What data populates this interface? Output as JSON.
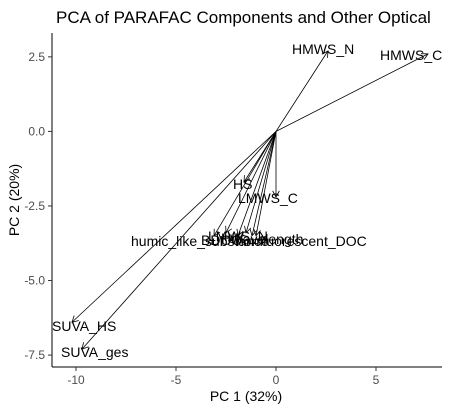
{
  "chart_data": {
    "type": "biplot",
    "title": "PCA of PARAFAC Components and Other Optical",
    "xlabel": "PC 1 (32%)",
    "ylabel": "PC 2 (20%)",
    "xlim": [
      -11.2,
      8.3
    ],
    "ylim": [
      -7.9,
      3.3
    ],
    "xticks": [
      -10,
      -5,
      0,
      5
    ],
    "xtick_labels": [
      "-10",
      "-5",
      "0",
      "5"
    ],
    "yticks": [
      -7.5,
      -5.0,
      -2.5,
      0.0,
      2.5
    ],
    "ytick_labels": [
      "-7.5",
      "-5.0",
      "-2.5",
      "0.0",
      "2.5"
    ],
    "grid": false,
    "origin": [
      0,
      0
    ],
    "vectors": [
      {
        "name": "HMWS_N",
        "x": 2.6,
        "y": 2.7
      },
      {
        "name": "HMWS_C",
        "x": 7.6,
        "y": 2.6
      },
      {
        "name": "HS",
        "x": -1.6,
        "y": -1.7
      },
      {
        "name": "LMWS_C",
        "x": 0.0,
        "y": -2.2
      },
      {
        "name": "humic_like_substance",
        "x": -3.1,
        "y": -3.5
      },
      {
        "name": "BDOC",
        "x": -2.5,
        "y": -3.4
      },
      {
        "name": "LMWS_N",
        "x": -1.9,
        "y": -3.5
      },
      {
        "name": "HIX",
        "x": -1.5,
        "y": -3.4
      },
      {
        "name": "Wavelength",
        "x": -1.2,
        "y": -3.5
      },
      {
        "name": "nonfluorescent_DOC",
        "x": -1.0,
        "y": -3.5
      },
      {
        "name": "SUVA_HS",
        "x": -10.2,
        "y": -6.4
      },
      {
        "name": "SUVA_ges",
        "x": -9.7,
        "y": -7.3
      }
    ]
  }
}
